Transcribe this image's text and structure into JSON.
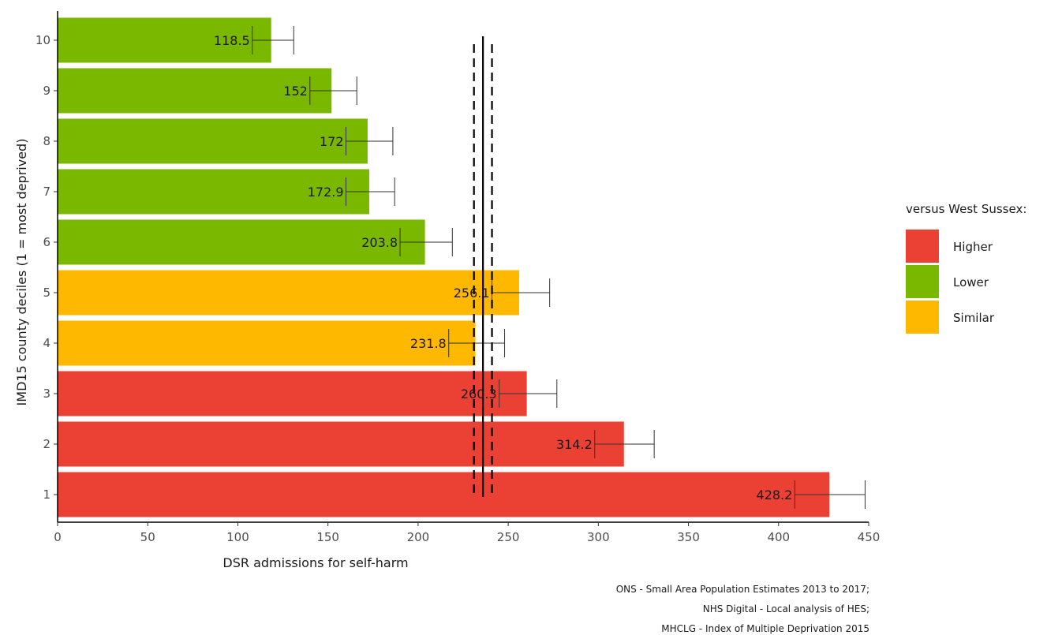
{
  "chart_data": {
    "type": "bar",
    "orientation": "horizontal",
    "xlabel": "DSR admissions for self-harm",
    "ylabel": "IMD15 county deciles (1 = most deprived)",
    "xlim": [
      0,
      450
    ],
    "x_ticks": [
      0,
      50,
      100,
      150,
      200,
      250,
      300,
      350,
      400,
      450
    ],
    "categories": [
      "1",
      "2",
      "3",
      "4",
      "5",
      "6",
      "7",
      "8",
      "9",
      "10"
    ],
    "values": [
      428.2,
      314.2,
      260.3,
      231.8,
      256.1,
      203.8,
      172.9,
      172,
      152,
      118.5
    ],
    "value_labels": [
      "428.2",
      "314.2",
      "260.3",
      "231.8",
      "256.1",
      "203.8",
      "172.9",
      "172",
      "152",
      "118.5"
    ],
    "ci_lower": [
      409,
      298,
      245,
      217,
      241,
      190,
      160,
      160,
      140,
      108
    ],
    "ci_upper": [
      448,
      331,
      277,
      248,
      273,
      219,
      187,
      186,
      166,
      131
    ],
    "comparison": [
      "Higher",
      "Higher",
      "Higher",
      "Similar",
      "Similar",
      "Lower",
      "Lower",
      "Lower",
      "Lower",
      "Lower"
    ],
    "reference": {
      "value": 236,
      "ci_lower": 231,
      "ci_upper": 241
    },
    "legend": {
      "title": "versus West Sussex:",
      "position": "right",
      "items": [
        {
          "label": "Higher",
          "color": "#eb4034"
        },
        {
          "label": "Lower",
          "color": "#7ab800"
        },
        {
          "label": "Similar",
          "color": "#ffb800"
        }
      ]
    },
    "grid": false
  },
  "caption": [
    "ONS - Small Area Population Estimates 2013 to 2017;",
    "NHS Digital - Local analysis of HES;",
    "MHCLG - Index of Multiple Deprivation 2015"
  ]
}
